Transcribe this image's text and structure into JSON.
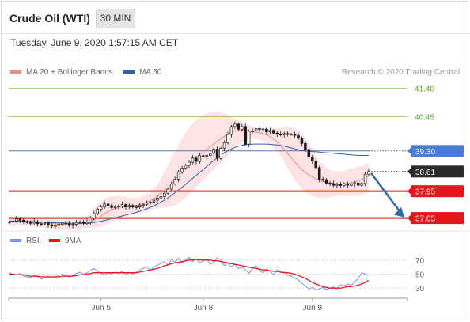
{
  "header": {
    "title": "Crude Oil (WTI)",
    "timeframe": "30 MIN"
  },
  "timestamp": "Tuesday, June 9, 2020 1:57:15 AM CET",
  "credit": "Research © 2020 Trading Central",
  "colors": {
    "ma20": "#f08a8a",
    "band": "#fcdada",
    "ma50": "#2f5fb3",
    "green": "#9bcf6e",
    "red": "#e6171b",
    "blueLevel": "#4a7bd6",
    "candleUp": "#1a1a1a",
    "candleDown": "#1a1a1a",
    "rsi": "#7d95e3",
    "rsiMa": "#e6171b",
    "arrow": "#2f69b3"
  },
  "legend": {
    "ma20": "MA 20 + Bollinger Bands",
    "ma50": "MA 50"
  },
  "rsi_legend": {
    "rsi": "RSI",
    "ma": "9MA"
  },
  "chart_data": [
    {
      "type": "candlestick",
      "ylim": [
        36.88,
        41.63
      ],
      "levels": [
        {
          "value": 41.4,
          "label": "41.40",
          "kind": "resistance-2",
          "color": "green"
        },
        {
          "value": 40.45,
          "label": "40.45",
          "kind": "resistance-1",
          "color": "green"
        },
        {
          "value": 39.3,
          "label": "39.30",
          "kind": "pivot",
          "color": "blueLevel"
        },
        {
          "value": 38.61,
          "label": "38.61",
          "kind": "last",
          "color": "dark"
        },
        {
          "value": 37.95,
          "label": "37.95",
          "kind": "support-1",
          "color": "red"
        },
        {
          "value": 37.05,
          "label": "37.05",
          "kind": "support-2",
          "color": "red"
        }
      ],
      "x_ticks": [
        {
          "label": "Jun 5",
          "index": 26
        },
        {
          "label": "Jun 8",
          "index": 55
        },
        {
          "label": "Jun 9",
          "index": 86
        }
      ],
      "closes": [
        36.92,
        36.95,
        37.02,
        36.98,
        36.93,
        36.9,
        36.88,
        36.93,
        36.86,
        36.85,
        36.88,
        36.82,
        36.78,
        36.8,
        36.84,
        36.88,
        36.86,
        36.8,
        36.84,
        36.9,
        36.92,
        36.88,
        36.92,
        37.05,
        37.2,
        37.35,
        37.42,
        37.52,
        37.47,
        37.4,
        37.43,
        37.45,
        37.5,
        37.42,
        37.47,
        37.42,
        37.42,
        37.48,
        37.51,
        37.55,
        37.58,
        37.65,
        37.72,
        37.77,
        37.88,
        38.02,
        38.2,
        38.35,
        38.6,
        38.72,
        38.82,
        38.92,
        39.06,
        38.95,
        39.14,
        39.12,
        39.15,
        39.22,
        39.36,
        39.05,
        39.39,
        39.58,
        39.85,
        40.12,
        40.2,
        40.03,
        40.12,
        39.53,
        39.96,
        39.97,
        40.05,
        40.03,
        40.04,
        39.94,
        39.99,
        39.9,
        39.86,
        39.85,
        39.88,
        39.86,
        39.86,
        39.82,
        39.72,
        39.55,
        39.35,
        39.1,
        38.96,
        38.74,
        38.35,
        38.34,
        38.22,
        38.21,
        38.15,
        38.18,
        38.14,
        38.2,
        38.15,
        38.19,
        38.23,
        38.15,
        38.21,
        38.52,
        38.61
      ],
      "ma20": [
        36.94,
        36.95,
        36.96,
        36.96,
        36.96,
        36.95,
        36.94,
        36.93,
        36.92,
        36.91,
        36.9,
        36.89,
        36.87,
        36.86,
        36.85,
        36.85,
        36.85,
        36.84,
        36.84,
        36.85,
        36.86,
        36.87,
        36.88,
        36.92,
        36.98,
        37.05,
        37.12,
        37.2,
        37.27,
        37.32,
        37.36,
        37.4,
        37.42,
        37.44,
        37.45,
        37.46,
        37.47,
        37.5,
        37.54,
        37.58,
        37.63,
        37.7,
        37.78,
        37.88,
        37.98,
        38.08,
        38.2,
        38.33,
        38.47,
        38.62,
        38.76,
        38.89,
        39.0,
        39.1,
        39.18,
        39.26,
        39.35,
        39.44,
        39.53,
        39.62,
        39.71,
        39.79,
        39.86,
        39.92,
        39.96,
        39.99,
        40.0,
        39.99,
        39.97,
        39.95,
        39.93,
        39.91,
        39.88,
        39.84,
        39.78,
        39.7,
        39.6,
        39.48,
        39.35,
        39.21,
        39.07,
        38.93,
        38.8,
        38.68,
        38.58,
        38.5,
        38.43,
        38.37,
        38.32,
        38.28,
        38.25,
        38.22,
        38.2,
        38.19,
        38.19,
        38.2,
        38.21,
        38.23,
        38.26,
        38.3,
        38.34,
        38.4,
        38.46
      ],
      "upper": [
        37.1,
        37.1,
        37.1,
        37.1,
        37.1,
        37.09,
        37.08,
        37.06,
        37.05,
        37.04,
        37.03,
        37.02,
        37.01,
        37.0,
        36.99,
        36.99,
        36.99,
        36.99,
        37.0,
        37.01,
        37.03,
        37.06,
        37.12,
        37.22,
        37.35,
        37.48,
        37.6,
        37.7,
        37.76,
        37.78,
        37.79,
        37.79,
        37.78,
        37.76,
        37.74,
        37.72,
        37.72,
        37.74,
        37.78,
        37.84,
        37.92,
        38.04,
        38.2,
        38.38,
        38.6,
        38.82,
        39.05,
        39.28,
        39.5,
        39.72,
        39.92,
        40.08,
        40.22,
        40.33,
        40.42,
        40.5,
        40.56,
        40.6,
        40.62,
        40.62,
        40.6,
        40.56,
        40.5,
        40.44,
        40.38,
        40.32,
        40.26,
        40.2,
        40.16,
        40.12,
        40.08,
        40.06,
        40.04,
        40.03,
        40.03,
        40.04,
        40.06,
        40.08,
        40.1,
        40.11,
        40.1,
        40.06,
        40.0,
        39.9,
        39.74,
        39.55,
        39.35,
        39.15,
        38.98,
        38.84,
        38.74,
        38.67,
        38.63,
        38.61,
        38.61,
        38.63,
        38.66,
        38.7,
        38.74,
        38.78,
        38.82,
        38.86,
        38.89
      ],
      "lower": [
        36.78,
        36.79,
        36.8,
        36.8,
        36.8,
        36.79,
        36.78,
        36.77,
        36.76,
        36.74,
        36.72,
        36.7,
        36.68,
        36.67,
        36.66,
        36.66,
        36.66,
        36.66,
        36.67,
        36.68,
        36.69,
        36.7,
        36.71,
        36.72,
        36.73,
        36.74,
        36.76,
        36.8,
        36.86,
        36.92,
        36.98,
        37.04,
        37.08,
        37.11,
        37.13,
        37.15,
        37.17,
        37.2,
        37.24,
        37.28,
        37.32,
        37.36,
        37.38,
        37.39,
        37.4,
        37.42,
        37.44,
        37.48,
        37.54,
        37.62,
        37.72,
        37.84,
        37.96,
        38.08,
        38.2,
        38.32,
        38.44,
        38.56,
        38.68,
        38.8,
        38.92,
        39.04,
        39.16,
        39.28,
        39.4,
        39.5,
        39.58,
        39.64,
        39.68,
        39.7,
        39.7,
        39.68,
        39.64,
        39.58,
        39.5,
        39.4,
        39.28,
        39.12,
        38.92,
        38.72,
        38.52,
        38.34,
        38.18,
        38.04,
        37.92,
        37.84,
        37.78,
        37.74,
        37.72,
        37.72,
        37.73,
        37.75,
        37.77,
        37.79,
        37.8,
        37.8,
        37.8,
        37.8,
        37.8,
        37.8,
        37.82,
        37.86,
        37.92
      ],
      "ma50": [
        36.95,
        36.95,
        36.95,
        36.94,
        36.94,
        36.93,
        36.93,
        36.92,
        36.92,
        36.91,
        36.91,
        36.9,
        36.9,
        36.89,
        36.89,
        36.88,
        36.88,
        36.88,
        36.87,
        36.87,
        36.87,
        36.87,
        36.87,
        36.88,
        36.9,
        36.92,
        36.94,
        36.97,
        37.0,
        37.03,
        37.06,
        37.09,
        37.12,
        37.15,
        37.18,
        37.21,
        37.24,
        37.28,
        37.32,
        37.36,
        37.41,
        37.46,
        37.52,
        37.58,
        37.65,
        37.73,
        37.81,
        37.9,
        37.99,
        38.08,
        38.18,
        38.28,
        38.38,
        38.48,
        38.58,
        38.68,
        38.78,
        38.88,
        38.98,
        39.07,
        39.16,
        39.24,
        39.31,
        39.37,
        39.42,
        39.46,
        39.49,
        39.51,
        39.52,
        39.53,
        39.53,
        39.53,
        39.53,
        39.53,
        39.52,
        39.51,
        39.5,
        39.48,
        39.46,
        39.43,
        39.4,
        39.37,
        39.34,
        39.32,
        39.3,
        39.29,
        39.28,
        39.27,
        39.26,
        39.25,
        39.24,
        39.23,
        39.22,
        39.21,
        39.2,
        39.19,
        39.18,
        39.17,
        39.16,
        39.15,
        39.15,
        39.15,
        39.15
      ]
    },
    {
      "type": "line",
      "ylim": [
        20,
        80
      ],
      "yticks": [
        70,
        50,
        30
      ],
      "series": [
        {
          "name": "RSI",
          "values": [
            52,
            50,
            49,
            51,
            47,
            46,
            45,
            48,
            46,
            43,
            45,
            47,
            44,
            46,
            48,
            50,
            47,
            46,
            48,
            51,
            53,
            50,
            52,
            55,
            58,
            54,
            51,
            49,
            52,
            50,
            53,
            51,
            54,
            49,
            52,
            50,
            53,
            56,
            58,
            61,
            55,
            60,
            63,
            65,
            68,
            63,
            71,
            67,
            73,
            66,
            70,
            74,
            68,
            72,
            66,
            69,
            71,
            64,
            67,
            73,
            70,
            62,
            66,
            60,
            64,
            58,
            60,
            56,
            51,
            58,
            62,
            55,
            52,
            57,
            54,
            49,
            56,
            52,
            55,
            48,
            47,
            44,
            42,
            37,
            33,
            29,
            31,
            27,
            29,
            31,
            28,
            30,
            32,
            29,
            35,
            33,
            36,
            34,
            38,
            44,
            52,
            50,
            48
          ]
        },
        {
          "name": "9MA",
          "values": [
            50,
            50,
            49,
            49,
            49,
            48,
            47,
            47,
            47,
            46,
            46,
            46,
            46,
            46,
            46,
            47,
            47,
            47,
            47,
            48,
            49,
            49,
            50,
            51,
            52,
            52,
            52,
            52,
            52,
            52,
            52,
            52,
            52,
            52,
            52,
            52,
            52,
            53,
            54,
            55,
            56,
            57,
            58,
            60,
            62,
            63,
            65,
            66,
            67,
            68,
            69,
            70,
            70,
            71,
            70,
            70,
            70,
            70,
            69,
            69,
            68,
            67,
            66,
            65,
            64,
            63,
            62,
            61,
            60,
            59,
            58,
            57,
            56,
            56,
            55,
            54,
            54,
            53,
            52,
            52,
            51,
            50,
            48,
            46,
            44,
            41,
            38,
            36,
            34,
            32,
            31,
            30,
            30,
            30,
            30,
            31,
            32,
            32,
            33,
            34,
            36,
            38,
            41
          ]
        }
      ]
    }
  ]
}
